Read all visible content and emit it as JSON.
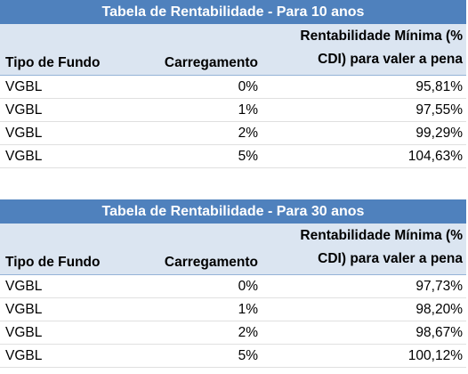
{
  "tables": [
    {
      "title": "Tabela de Rentabilidade - Para 10 anos",
      "headers": {
        "fundo": "Tipo de Fundo",
        "carregamento": "Carregamento",
        "rent_line1": "Rentabilidade Mínima (%",
        "rent_line2": "CDI) para valer a pena"
      },
      "rows": [
        {
          "fundo": "VGBL",
          "carregamento": "0%",
          "rent": "95,81%"
        },
        {
          "fundo": "VGBL",
          "carregamento": "1%",
          "rent": "97,55%"
        },
        {
          "fundo": "VGBL",
          "carregamento": "2%",
          "rent": "99,29%"
        },
        {
          "fundo": "VGBL",
          "carregamento": "5%",
          "rent": "104,63%"
        }
      ]
    },
    {
      "title": "Tabela de Rentabilidade - Para 30 anos",
      "headers": {
        "fundo": "Tipo de Fundo",
        "carregamento": "Carregamento",
        "rent_line1": "Rentabilidade Mínima (%",
        "rent_line2": "CDI) para valer a pena"
      },
      "rows": [
        {
          "fundo": "VGBL",
          "carregamento": "0%",
          "rent": "97,73%"
        },
        {
          "fundo": "VGBL",
          "carregamento": "1%",
          "rent": "98,20%"
        },
        {
          "fundo": "VGBL",
          "carregamento": "2%",
          "rent": "98,67%"
        },
        {
          "fundo": "VGBL",
          "carregamento": "5%",
          "rent": "100,12%"
        }
      ]
    }
  ],
  "colors": {
    "title_bg": "#4f81bd",
    "header_bg": "#dbe5f1"
  }
}
